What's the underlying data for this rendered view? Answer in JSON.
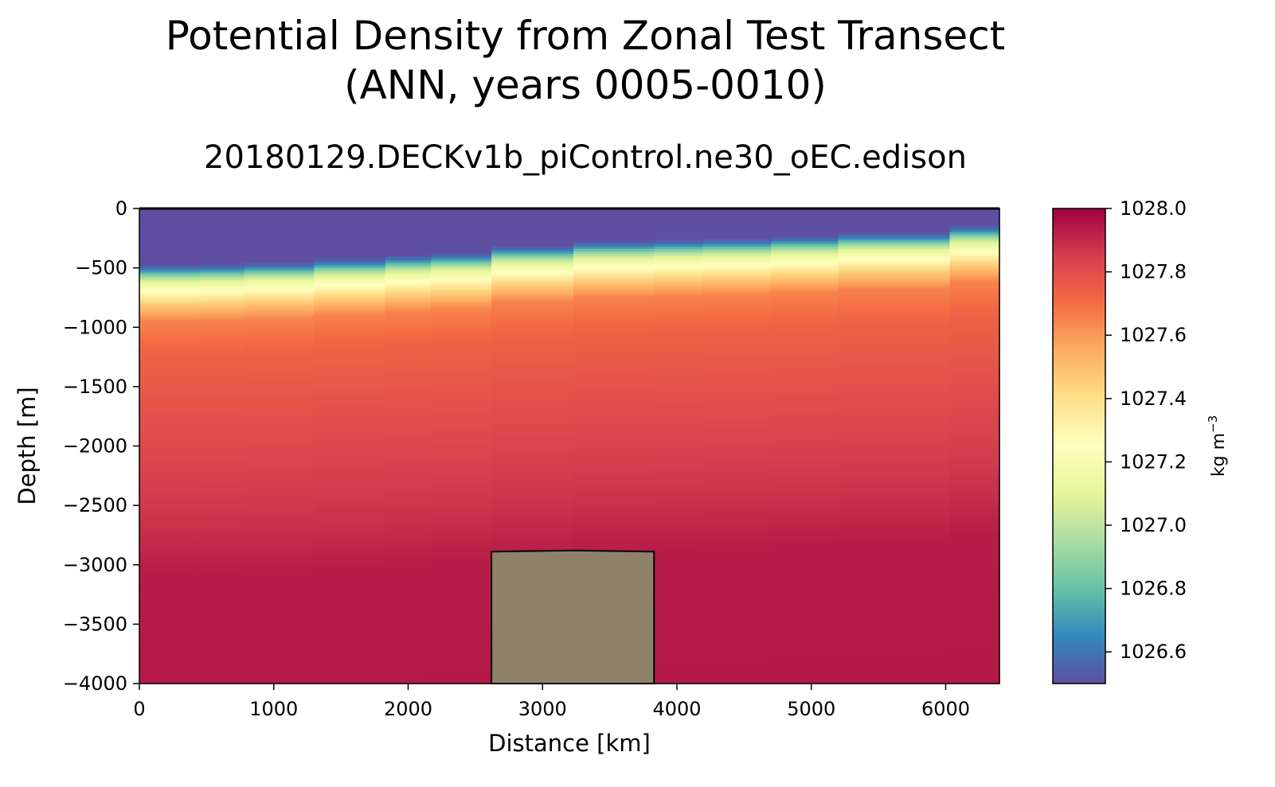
{
  "figure": {
    "title_line1": "Potential Density from Zonal Test Transect",
    "title_line2": "(ANN, years 0005-0010)",
    "subtitle": "20180129.DECKv1b_piControl.ne30_oEC.edison"
  },
  "chart_data": {
    "type": "heatmap",
    "xlabel": "Distance [km]",
    "ylabel": "Depth [m]",
    "xlim": [
      0,
      6400
    ],
    "ylim": [
      -4000,
      0
    ],
    "xticks": [
      0,
      1000,
      2000,
      3000,
      4000,
      5000,
      6000
    ],
    "yticks": [
      0,
      -500,
      -1000,
      -1500,
      -2000,
      -2500,
      -3000,
      -3500,
      -4000
    ],
    "colorbar": {
      "label": "kg m",
      "label_superscript": "−3",
      "range": [
        1026.5,
        1028.0
      ],
      "ticks": [
        "1026.6",
        "1026.8",
        "1027.0",
        "1027.2",
        "1027.4",
        "1027.6",
        "1027.8",
        "1028.0"
      ],
      "colormap": "Spectral_r",
      "colors": [
        "#5e4fa2",
        "#3288bd",
        "#66c2a5",
        "#abdda4",
        "#e6f598",
        "#ffffbf",
        "#fee08b",
        "#fdae61",
        "#f46d43",
        "#d53e4f",
        "#9e0142"
      ]
    },
    "columns": [
      {
        "x0": 0,
        "x1": 450,
        "mixed_layer_depth": -470
      },
      {
        "x0": 450,
        "x1": 780,
        "mixed_layer_depth": -465
      },
      {
        "x0": 780,
        "x1": 1300,
        "mixed_layer_depth": -450
      },
      {
        "x0": 1300,
        "x1": 1830,
        "mixed_layer_depth": -420
      },
      {
        "x0": 1830,
        "x1": 2170,
        "mixed_layer_depth": -390
      },
      {
        "x0": 2170,
        "x1": 2620,
        "mixed_layer_depth": -370
      },
      {
        "x0": 2620,
        "x1": 3230,
        "mixed_layer_depth": -310
      },
      {
        "x0": 3230,
        "x1": 3830,
        "mixed_layer_depth": -270
      },
      {
        "x0": 3830,
        "x1": 4190,
        "mixed_layer_depth": -260
      },
      {
        "x0": 4190,
        "x1": 4700,
        "mixed_layer_depth": -250
      },
      {
        "x0": 4700,
        "x1": 5200,
        "mixed_layer_depth": -230
      },
      {
        "x0": 5200,
        "x1": 6030,
        "mixed_layer_depth": -200
      },
      {
        "x0": 6030,
        "x1": 6400,
        "mixed_layer_depth": -140
      }
    ],
    "density_profile": [
      {
        "below_mld": 0,
        "value": 1026.5
      },
      {
        "below_mld": 40,
        "value": 1026.6
      },
      {
        "below_mld": 90,
        "value": 1026.85
      },
      {
        "below_mld": 150,
        "value": 1027.1
      },
      {
        "below_mld": 230,
        "value": 1027.25
      },
      {
        "below_mld": 330,
        "value": 1027.45
      },
      {
        "below_mld": 480,
        "value": 1027.65
      },
      {
        "below_mld": 750,
        "value": 1027.73
      },
      {
        "below_mld": 1400,
        "value": 1027.8
      },
      {
        "below_mld": 2100,
        "value": 1027.87
      },
      {
        "below_mld": 2600,
        "value": 1027.93
      },
      {
        "below_mld": 3600,
        "value": 1027.94
      }
    ],
    "seamount": {
      "color": "#8f826b",
      "outline": [
        [
          2620,
          -4000
        ],
        [
          2620,
          -2890
        ],
        [
          3230,
          -2880
        ],
        [
          3830,
          -2890
        ],
        [
          3830,
          -4000
        ]
      ]
    }
  }
}
